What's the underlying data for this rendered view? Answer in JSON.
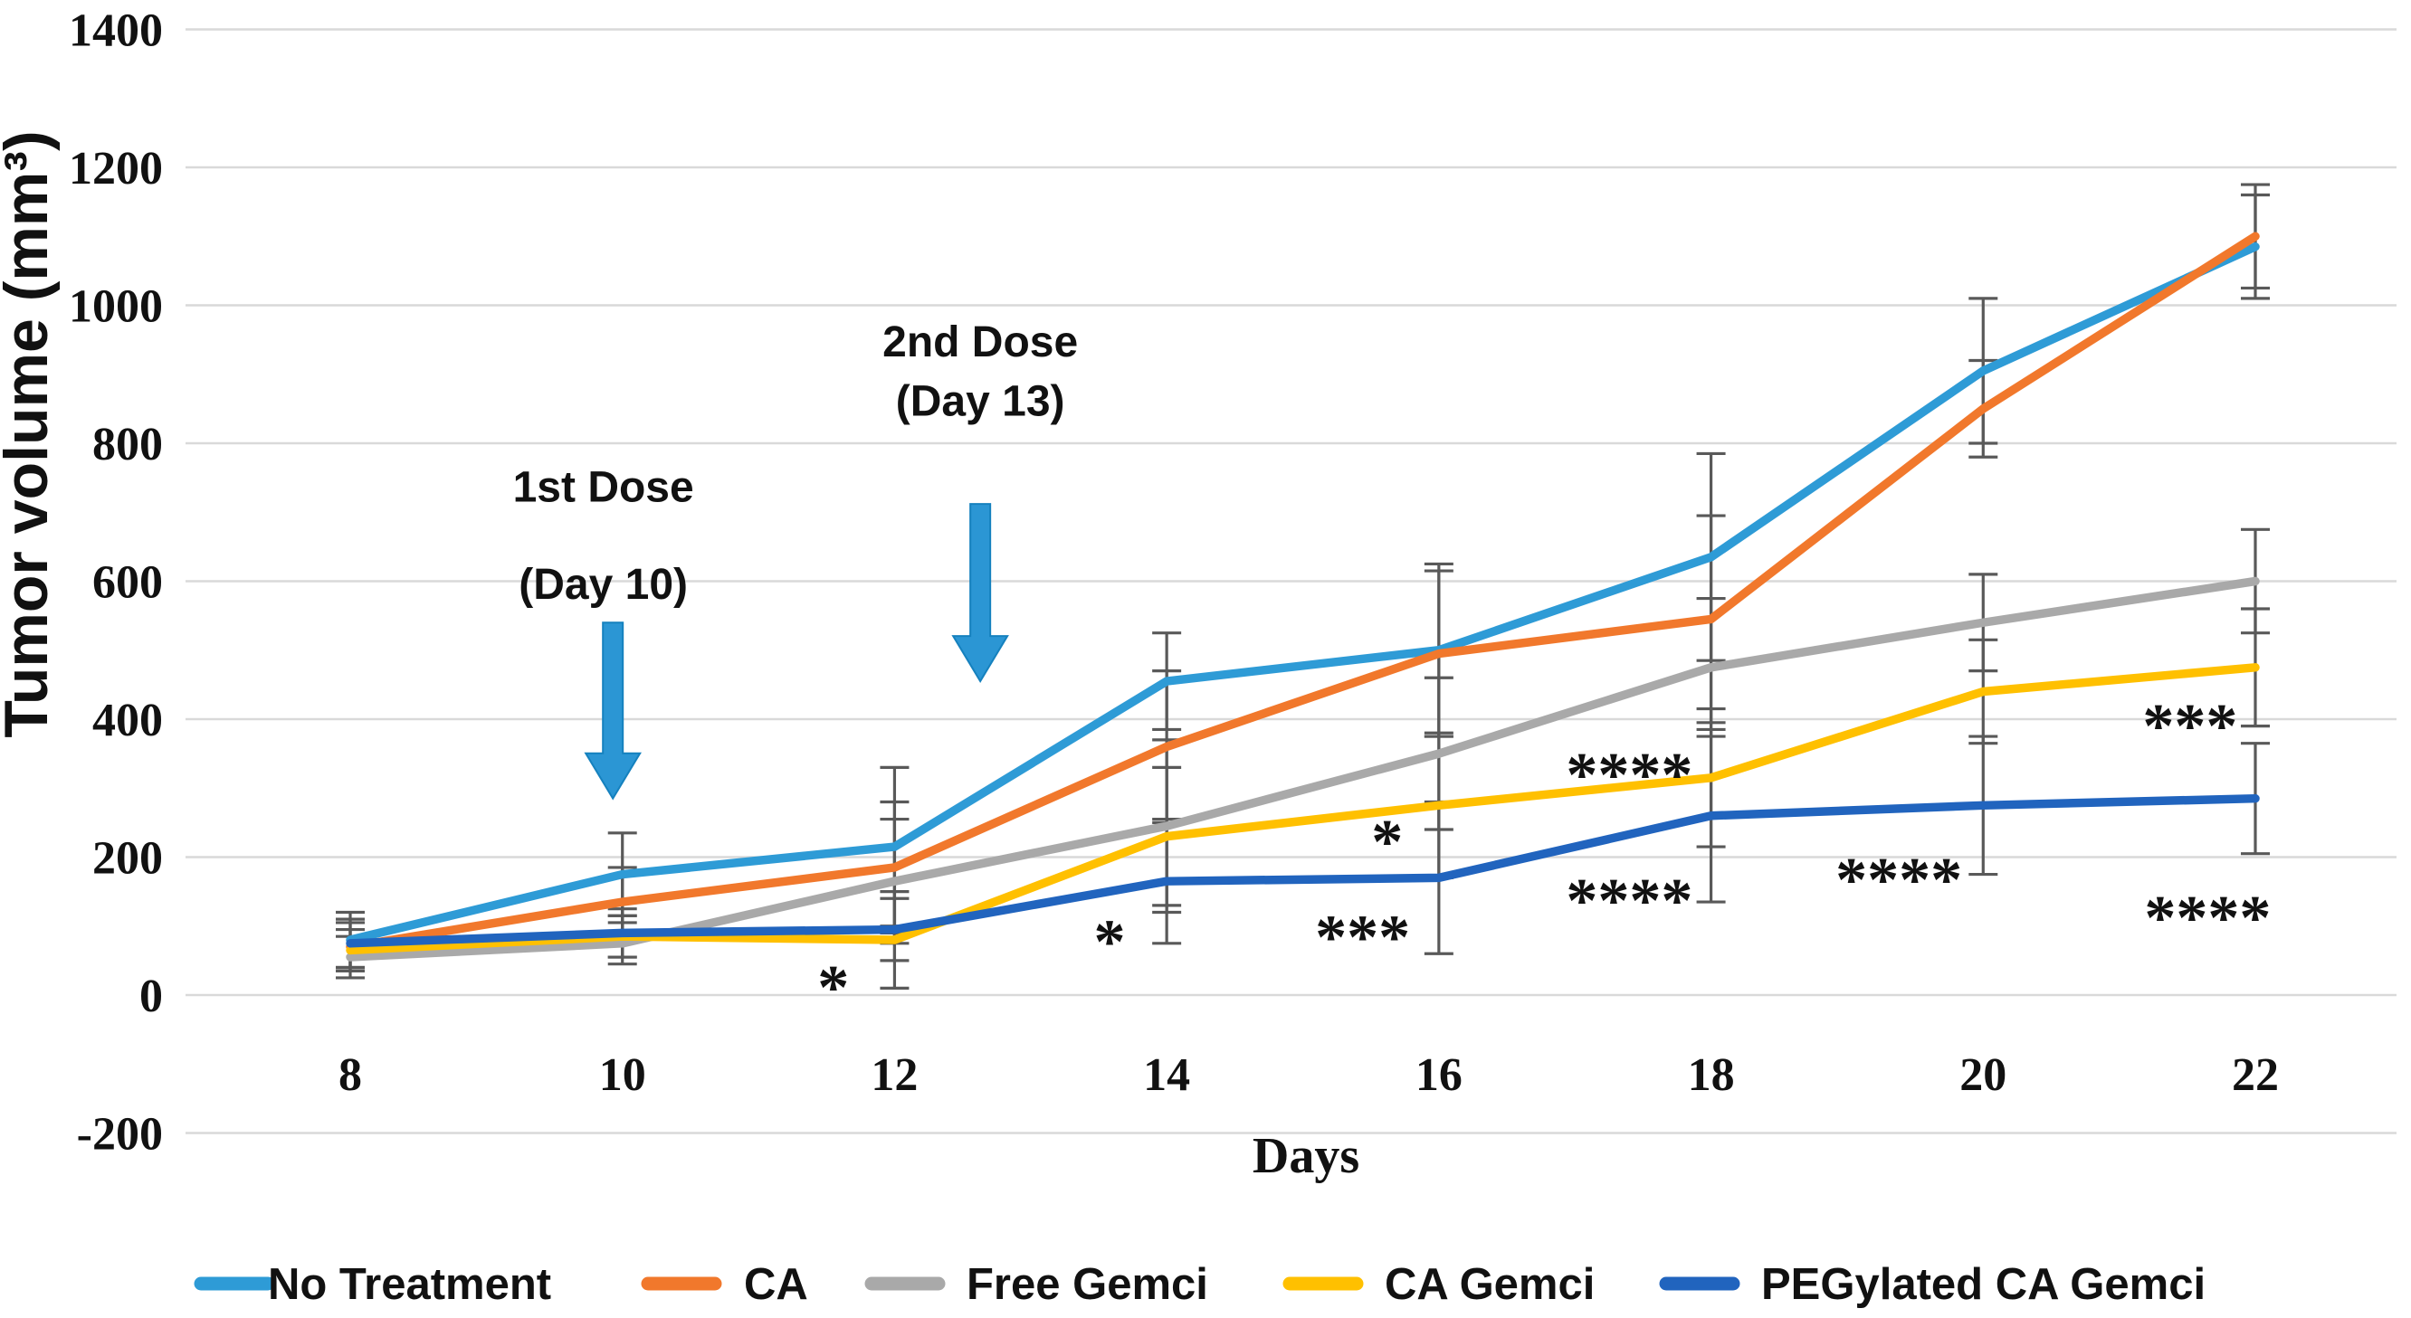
{
  "page": {
    "background": "#FFFFFF"
  },
  "chart_data": {
    "type": "line",
    "title": "",
    "xlabel": "Days",
    "ylabel": "Tumor volume (mm³)",
    "x": [
      8,
      10,
      12,
      14,
      16,
      18,
      20,
      22
    ],
    "ylim": [
      -200,
      1400
    ],
    "yticks": [
      -200,
      0,
      200,
      400,
      600,
      800,
      1000,
      1200,
      1400
    ],
    "grid": true,
    "gridline_color": "#D9D9D9",
    "error_bar_color": "#595959",
    "arrow_color": "#2B96D4",
    "arrow_outline_color": "#1581BE",
    "legend_position": "bottom",
    "series": [
      {
        "name": "No Treatment",
        "color": "#2E9BD6",
        "values": [
          80,
          175,
          215,
          455,
          500,
          635,
          905,
          1085
        ],
        "errors": [
          40,
          60,
          115,
          70,
          125,
          150,
          105,
          75
        ]
      },
      {
        "name": "CA",
        "color": "#F1782C",
        "values": [
          70,
          135,
          185,
          360,
          495,
          545,
          850,
          1100
        ],
        "errors": [
          35,
          50,
          95,
          110,
          120,
          150,
          70,
          75
        ]
      },
      {
        "name": "Free Gemci",
        "color": "#A9A9A9",
        "values": [
          55,
          75,
          165,
          245,
          350,
          475,
          540,
          600
        ],
        "errors": [
          30,
          30,
          90,
          125,
          110,
          100,
          70,
          75
        ]
      },
      {
        "name": "CA Gemci",
        "color": "#FFC000",
        "values": [
          65,
          85,
          80,
          230,
          275,
          315,
          440,
          475
        ],
        "errors": [
          30,
          30,
          70,
          100,
          105,
          100,
          75,
          85
        ]
      },
      {
        "name": "PEGylated CA Gemci",
        "color": "#2164BE",
        "values": [
          75,
          90,
          95,
          165,
          170,
          260,
          275,
          285
        ],
        "errors": [
          35,
          35,
          45,
          90,
          110,
          125,
          100,
          80
        ]
      }
    ],
    "dose_annotations": [
      {
        "label_lines": [
          {
            "text": "1st Dose",
            "day": 9.86,
            "value": 738
          },
          {
            "text": "(Day 10)",
            "day": 9.86,
            "value": 597
          }
        ],
        "arrow": {
          "day": 9.93,
          "from_value": 540,
          "to_value": 285
        }
      },
      {
        "label_lines": [
          {
            "text": "2nd Dose",
            "day": 12.63,
            "value": 948
          },
          {
            "text": "(Day 13)",
            "day": 12.63,
            "value": 862
          }
        ],
        "arrow": {
          "day": 12.63,
          "from_value": 712,
          "to_value": 455
        }
      }
    ],
    "significance_markers": [
      {
        "text": "*",
        "day": 11.55,
        "value": 17
      },
      {
        "text": "*",
        "day": 13.58,
        "value": 83
      },
      {
        "text": "*",
        "day": 15.62,
        "value": 228
      },
      {
        "text": "***",
        "day": 15.44,
        "value": 90
      },
      {
        "text": "****",
        "day": 17.4,
        "value": 325
      },
      {
        "text": "****",
        "day": 17.4,
        "value": 143
      },
      {
        "text": "****",
        "day": 19.38,
        "value": 173
      },
      {
        "text": "***",
        "day": 21.52,
        "value": 396
      },
      {
        "text": "****",
        "day": 21.65,
        "value": 118
      }
    ]
  }
}
